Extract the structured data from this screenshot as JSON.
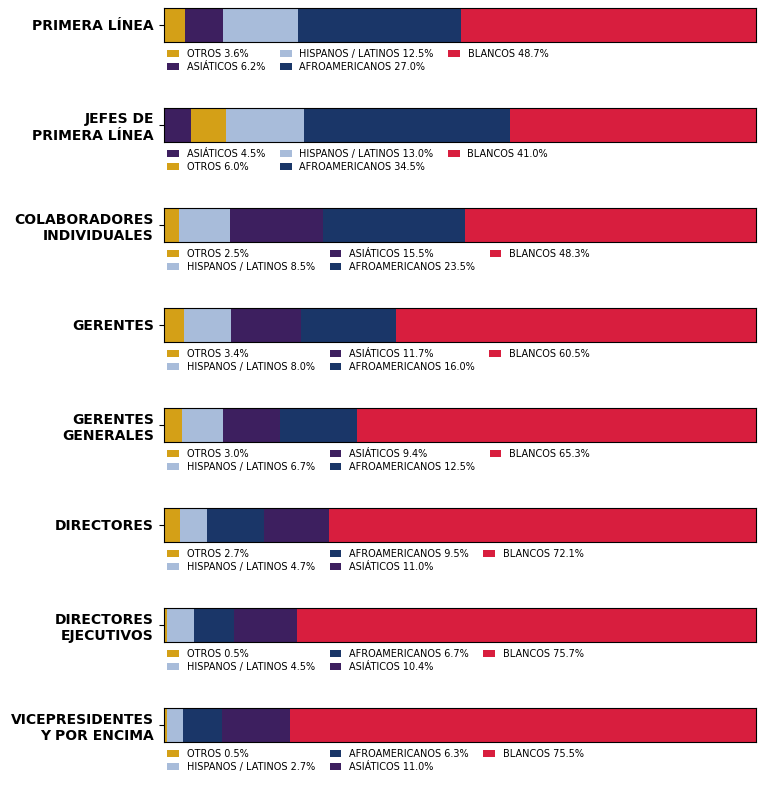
{
  "chart_data": [
    {
      "type": "bar",
      "orientation": "horizontal",
      "stacked": true,
      "tick_labels": "y",
      "legend": "upper left",
      "categories": [
        "PRIMERA LÍNEA"
      ],
      "xlim": [
        0,
        98.0
      ],
      "xticks": [],
      "series": [
        {
          "name": "OTROS 3.6%",
          "color": "#D4A017",
          "values": [
            3.6
          ]
        },
        {
          "name": "ASIÁTICOS 6.2%",
          "color": "#3D1F5F",
          "values": [
            6.2
          ]
        },
        {
          "name": "HISPANOS / LATINOS 12.5%",
          "color": "#A8BCDA",
          "values": [
            12.5
          ]
        },
        {
          "name": "AFROAMERICANOS 27.0%",
          "color": "#1A3668",
          "values": [
            27.0
          ]
        },
        {
          "name": "BLANCOS 48.7%",
          "color": "#D81E3E",
          "values": [
            48.7
          ]
        }
      ]
    },
    {
      "type": "bar",
      "orientation": "horizontal",
      "stacked": true,
      "tick_labels": "y",
      "legend": "upper left",
      "categories": [
        "JEFES DE\nPRIMERA LÍNEA"
      ],
      "xlim": [
        0,
        99.0
      ],
      "xticks": [],
      "series": [
        {
          "name": "ASIÁTICOS 4.5%",
          "color": "#3D1F5F",
          "values": [
            4.5
          ]
        },
        {
          "name": "OTROS 6.0%",
          "color": "#D4A017",
          "values": [
            6.0
          ]
        },
        {
          "name": "HISPANOS / LATINOS 13.0%",
          "color": "#A8BCDA",
          "values": [
            13.0
          ]
        },
        {
          "name": "AFROAMERICANOS 34.5%",
          "color": "#1A3668",
          "values": [
            34.5
          ]
        },
        {
          "name": "BLANCOS 41.0%",
          "color": "#D81E3E",
          "values": [
            41.0
          ]
        }
      ]
    },
    {
      "type": "bar",
      "orientation": "horizontal",
      "stacked": true,
      "tick_labels": "y",
      "legend": "upper left",
      "categories": [
        "COLABORADORES\nINDIVIDUALES"
      ],
      "xlim": [
        0,
        98.3
      ],
      "xticks": [],
      "series": [
        {
          "name": "OTROS 2.5%",
          "color": "#D4A017",
          "values": [
            2.5
          ]
        },
        {
          "name": "HISPANOS / LATINOS 8.5%",
          "color": "#A8BCDA",
          "values": [
            8.5
          ]
        },
        {
          "name": "ASIÁTICOS 15.5%",
          "color": "#3D1F5F",
          "values": [
            15.5
          ]
        },
        {
          "name": "AFROAMERICANOS 23.5%",
          "color": "#1A3668",
          "values": [
            23.5
          ]
        },
        {
          "name": "BLANCOS 48.3%",
          "color": "#D81E3E",
          "values": [
            48.3
          ]
        }
      ]
    },
    {
      "type": "bar",
      "orientation": "horizontal",
      "stacked": true,
      "tick_labels": "y",
      "legend": "upper left",
      "categories": [
        "GERENTES"
      ],
      "xlim": [
        0,
        99.6
      ],
      "xticks": [],
      "series": [
        {
          "name": "OTROS 3.4%",
          "color": "#D4A017",
          "values": [
            3.4
          ]
        },
        {
          "name": "HISPANOS / LATINOS 8.0%",
          "color": "#A8BCDA",
          "values": [
            8.0
          ]
        },
        {
          "name": "ASIÁTICOS 11.7%",
          "color": "#3D1F5F",
          "values": [
            11.7
          ]
        },
        {
          "name": "AFROAMERICANOS 16.0%",
          "color": "#1A3668",
          "values": [
            16.0
          ]
        },
        {
          "name": "BLANCOS 60.5%",
          "color": "#D81E3E",
          "values": [
            60.5
          ]
        }
      ]
    },
    {
      "type": "bar",
      "orientation": "horizontal",
      "stacked": true,
      "tick_labels": "y",
      "legend": "upper left",
      "categories": [
        "GERENTES\nGENERALES"
      ],
      "xlim": [
        0,
        96.9
      ],
      "xticks": [],
      "series": [
        {
          "name": "OTROS 3.0%",
          "color": "#D4A017",
          "values": [
            3.0
          ]
        },
        {
          "name": "HISPANOS / LATINOS 6.7%",
          "color": "#A8BCDA",
          "values": [
            6.7
          ]
        },
        {
          "name": "ASIÁTICOS 9.4%",
          "color": "#3D1F5F",
          "values": [
            9.4
          ]
        },
        {
          "name": "AFROAMERICANOS 12.5%",
          "color": "#1A3668",
          "values": [
            12.5
          ]
        },
        {
          "name": "BLANCOS 65.3%",
          "color": "#D81E3E",
          "values": [
            65.3
          ]
        }
      ]
    },
    {
      "type": "bar",
      "orientation": "horizontal",
      "stacked": true,
      "tick_labels": "y",
      "legend": "upper left",
      "categories": [
        "DIRECTORES"
      ],
      "xlim": [
        0,
        100.0
      ],
      "xticks": [],
      "series": [
        {
          "name": "OTROS 2.7%",
          "color": "#D4A017",
          "values": [
            2.7
          ]
        },
        {
          "name": "HISPANOS / LATINOS 4.7%",
          "color": "#A8BCDA",
          "values": [
            4.7
          ]
        },
        {
          "name": "AFROAMERICANOS 9.5%",
          "color": "#1A3668",
          "values": [
            9.5
          ]
        },
        {
          "name": "ASIÁTICOS 11.0%",
          "color": "#3D1F5F",
          "values": [
            11.0
          ]
        },
        {
          "name": "BLANCOS 72.1%",
          "color": "#D81E3E",
          "values": [
            72.1
          ]
        }
      ]
    },
    {
      "type": "bar",
      "orientation": "horizontal",
      "stacked": true,
      "tick_labels": "y",
      "legend": "upper left",
      "categories": [
        "DIRECTORES\nEJECUTIVOS"
      ],
      "xlim": [
        0,
        97.8
      ],
      "xticks": [],
      "series": [
        {
          "name": "OTROS 0.5%",
          "color": "#D4A017",
          "values": [
            0.5
          ]
        },
        {
          "name": "HISPANOS / LATINOS 4.5%",
          "color": "#A8BCDA",
          "values": [
            4.5
          ]
        },
        {
          "name": "AFROAMERICANOS 6.7%",
          "color": "#1A3668",
          "values": [
            6.7
          ]
        },
        {
          "name": "ASIÁTICOS 10.4%",
          "color": "#3D1F5F",
          "values": [
            10.4
          ]
        },
        {
          "name": "BLANCOS 75.7%",
          "color": "#D81E3E",
          "values": [
            75.7
          ]
        }
      ]
    },
    {
      "type": "bar",
      "orientation": "horizontal",
      "stacked": true,
      "tick_labels": "y",
      "legend": "upper left",
      "categories": [
        "VICEPRESIDENTES\nY POR ENCIMA"
      ],
      "xlim": [
        0,
        96.0
      ],
      "xticks": [],
      "series": [
        {
          "name": "OTROS 0.5%",
          "color": "#D4A017",
          "values": [
            0.5
          ]
        },
        {
          "name": "HISPANOS / LATINOS 2.7%",
          "color": "#A8BCDA",
          "values": [
            2.7
          ]
        },
        {
          "name": "AFROAMERICANOS 6.3%",
          "color": "#1A3668",
          "values": [
            6.3
          ]
        },
        {
          "name": "ASIÁTICOS 11.0%",
          "color": "#3D1F5F",
          "values": [
            11.0
          ]
        },
        {
          "name": "BLANCOS 75.5%",
          "color": "#D81E3E",
          "values": [
            75.5
          ]
        }
      ]
    }
  ]
}
